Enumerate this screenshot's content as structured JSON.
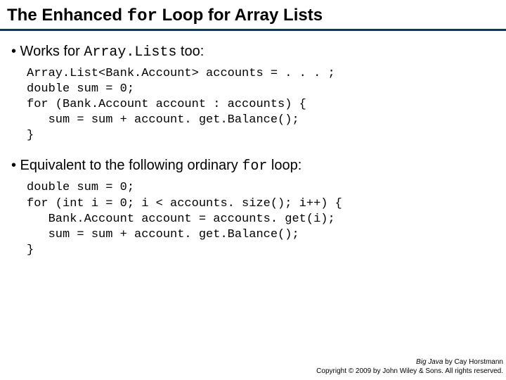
{
  "colors": {
    "title_underline": "#0b3866",
    "text": "#000000"
  },
  "title": {
    "pre": "The Enhanced ",
    "mono": "for",
    "post": " Loop for Array Lists",
    "fontsize": 24
  },
  "bullet1": {
    "pre": "• Works for ",
    "mono": "Array.Lists",
    "post": " too:"
  },
  "code1": "Array.List<Bank.Account> accounts = . . . ;\ndouble sum = 0;\nfor (Bank.Account account : accounts) {\n   sum = sum + account. get.Balance();\n}",
  "bullet2": {
    "pre": "• Equivalent to the following ordinary ",
    "mono": "for",
    "post": " loop:"
  },
  "code2": "double sum = 0;\nfor (int i = 0; i < accounts. size(); i++) {\n   Bank.Account account = accounts. get(i);\n   sum = sum + account. get.Balance();\n}",
  "footer": {
    "book_title": "Big Java",
    "by": " by Cay Horstmann",
    "copyright": "Copyright © 2009 by John Wiley & Sons.  All rights reserved."
  }
}
